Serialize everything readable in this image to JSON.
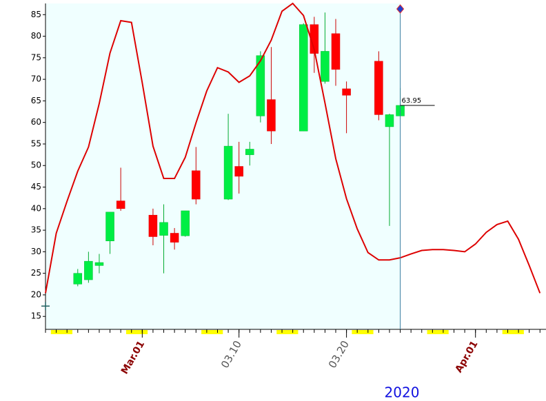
{
  "chart_data": {
    "type": "candlestick",
    "x": [
      -5,
      -4,
      -3,
      -2,
      -1,
      2,
      3,
      4,
      5,
      6,
      9,
      10,
      11,
      12,
      13,
      16,
      17,
      18,
      19,
      20,
      23,
      24,
      25
    ],
    "open": [
      22.5,
      23.5,
      26.8,
      32.5,
      41.8,
      38.5,
      33.8,
      34.3,
      33.7,
      48.8,
      42.2,
      49.8,
      52.5,
      61.5,
      65.3,
      58,
      82.7,
      69.5,
      80.6,
      67.8,
      74.2,
      59,
      61.5
    ],
    "high": [
      26,
      30,
      29.5,
      39.2,
      49.5,
      40,
      41,
      35.5,
      39.5,
      54.3,
      62,
      55.5,
      55.5,
      76.5,
      77.5,
      83,
      84.5,
      85.5,
      84,
      69.5,
      76.5,
      62,
      68
    ],
    "low": [
      22,
      22.8,
      25,
      29.5,
      39.5,
      31.5,
      25,
      30.5,
      33.5,
      41,
      42,
      43.5,
      50,
      60,
      55,
      58,
      71.5,
      69,
      68.5,
      57.5,
      60.5,
      36,
      61.5
    ],
    "close": [
      25,
      27.8,
      27.5,
      39.2,
      40,
      33.5,
      36.8,
      32.2,
      39.5,
      42.2,
      54.5,
      47.5,
      53.8,
      75.5,
      58,
      82.7,
      76,
      76.5,
      72.3,
      66.3,
      61.8,
      61.8,
      63.95
    ],
    "up_color": "#00ee44",
    "down_color": "#ff0000",
    "line": {
      "color": "#dd0000",
      "x": [
        -8,
        -7,
        -6,
        -5,
        -4,
        -3,
        -2,
        -1,
        0,
        1,
        2,
        3,
        4,
        5,
        6,
        7,
        8,
        9,
        10,
        11,
        12,
        13,
        14,
        15,
        16,
        17,
        18,
        19,
        20,
        21,
        22,
        23,
        24,
        25,
        26,
        27,
        28,
        29,
        30,
        31,
        32,
        33,
        34,
        35,
        36,
        37,
        38
      ],
      "values": [
        20.4,
        34.3,
        41.7,
        48.7,
        54.3,
        64.4,
        76.1,
        83.6,
        83.2,
        69.2,
        54.5,
        47.0,
        47.0,
        51.9,
        59.9,
        67.3,
        72.7,
        71.7,
        69.3,
        70.8,
        74.3,
        79.1,
        85.8,
        87.6,
        84.8,
        76.9,
        64.5,
        51.6,
        42.3,
        35.3,
        29.8,
        28.1,
        28.1,
        28.6,
        29.5,
        30.3,
        30.5,
        30.5,
        30.3,
        30.0,
        31.8,
        34.5,
        36.3,
        37.1,
        32.9,
        26.8,
        20.4
      ]
    },
    "xlim": [
      -8,
      38.56
    ],
    "ylim": [
      12,
      87.6
    ],
    "yticks": [
      15,
      20,
      25,
      30,
      35,
      40,
      45,
      50,
      55,
      60,
      65,
      70,
      75,
      80,
      85
    ],
    "xticks": [
      {
        "value": 1,
        "label": "Mar.01"
      },
      {
        "value": 10,
        "label": "03.10"
      },
      {
        "value": 20,
        "label": "03.20"
      },
      {
        "value": 32,
        "label": "Apr.01"
      }
    ],
    "year_label": "2020"
  }
}
